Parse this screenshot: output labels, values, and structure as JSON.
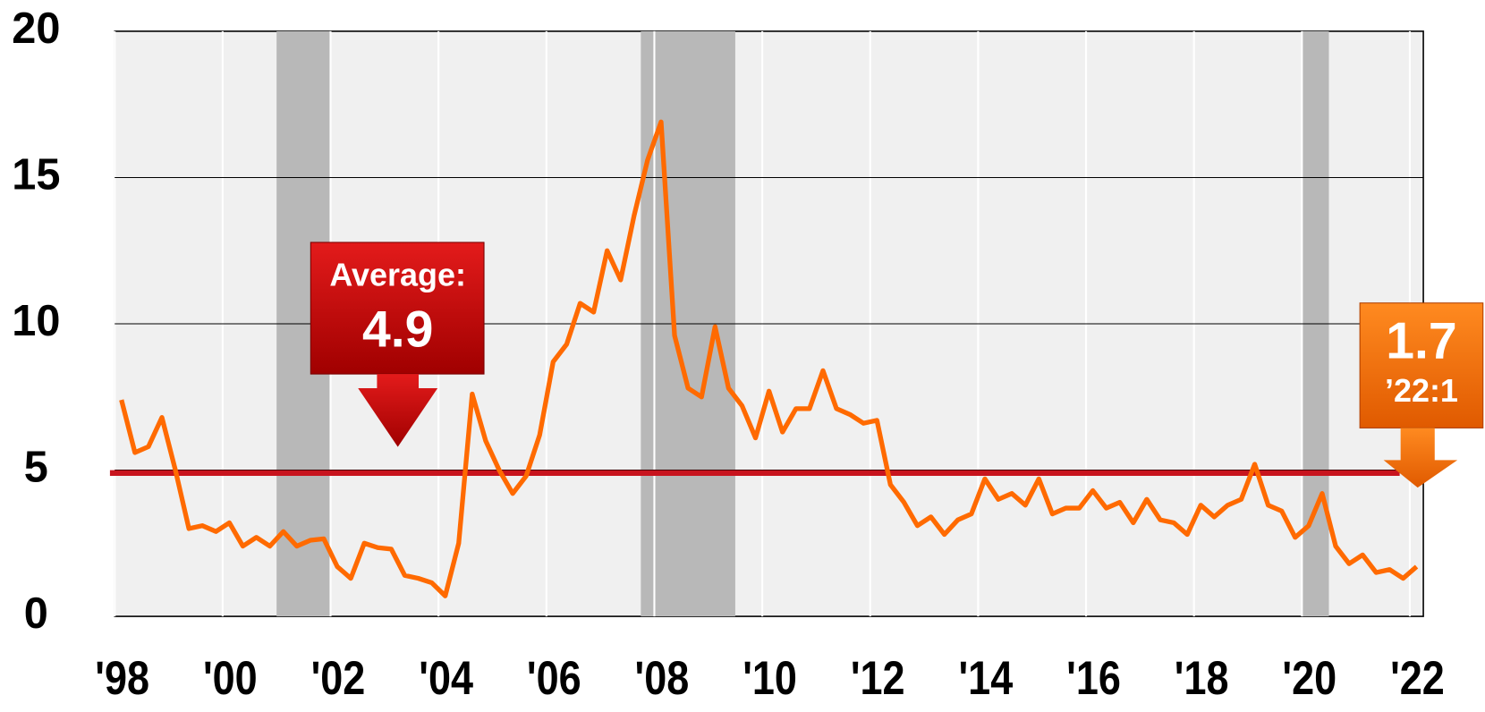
{
  "chart_data": {
    "type": "line",
    "x": [
      1998.125,
      1998.375,
      1998.625,
      1998.875,
      1999.125,
      1999.375,
      1999.625,
      1999.875,
      2000.125,
      2000.375,
      2000.625,
      2000.875,
      2001.125,
      2001.375,
      2001.625,
      2001.875,
      2002.125,
      2002.375,
      2002.625,
      2002.875,
      2003.125,
      2003.375,
      2003.625,
      2003.875,
      2004.125,
      2004.375,
      2004.625,
      2004.875,
      2005.125,
      2005.375,
      2005.625,
      2005.875,
      2006.125,
      2006.375,
      2006.625,
      2006.875,
      2007.125,
      2007.375,
      2007.625,
      2007.875,
      2008.125,
      2008.375,
      2008.625,
      2008.875,
      2009.125,
      2009.375,
      2009.625,
      2009.875,
      2010.125,
      2010.375,
      2010.625,
      2010.875,
      2011.125,
      2011.375,
      2011.625,
      2011.875,
      2012.125,
      2012.375,
      2012.625,
      2012.875,
      2013.125,
      2013.375,
      2013.625,
      2013.875,
      2014.125,
      2014.375,
      2014.625,
      2014.875,
      2015.125,
      2015.375,
      2015.625,
      2015.875,
      2016.125,
      2016.375,
      2016.625,
      2016.875,
      2017.125,
      2017.375,
      2017.625,
      2017.875,
      2018.125,
      2018.375,
      2018.625,
      2018.875,
      2019.125,
      2019.375,
      2019.625,
      2019.875,
      2020.125,
      2020.375,
      2020.625,
      2020.875,
      2021.125,
      2021.375,
      2021.625,
      2021.875,
      2022.125
    ],
    "values": [
      7.4,
      5.6,
      5.8,
      6.8,
      5.0,
      3.0,
      3.1,
      2.9,
      3.2,
      2.4,
      2.7,
      2.4,
      2.9,
      2.4,
      2.6,
      2.65,
      1.7,
      1.3,
      2.5,
      2.35,
      2.3,
      1.4,
      1.3,
      1.15,
      0.7,
      2.5,
      7.6,
      6.0,
      5.0,
      4.2,
      4.8,
      6.2,
      8.7,
      9.3,
      10.7,
      10.4,
      12.5,
      11.5,
      13.7,
      15.6,
      16.9,
      9.6,
      7.8,
      7.5,
      9.9,
      7.8,
      7.2,
      6.1,
      7.7,
      6.3,
      7.1,
      7.1,
      8.4,
      7.1,
      6.9,
      6.6,
      6.7,
      4.5,
      3.9,
      3.1,
      3.4,
      2.8,
      3.3,
      3.5,
      4.7,
      4.0,
      4.2,
      3.8,
      4.7,
      3.5,
      3.7,
      3.7,
      4.3,
      3.7,
      3.9,
      3.2,
      4.0,
      3.3,
      3.2,
      2.8,
      3.8,
      3.4,
      3.8,
      4.0,
      5.2,
      3.8,
      3.6,
      2.7,
      3.1,
      4.2,
      2.4,
      1.8,
      2.1,
      1.5,
      1.6,
      1.3,
      1.7
    ],
    "color": "#ff6a00",
    "xlim": [
      1998,
      2022.25
    ],
    "xticks": [
      {
        "value": 1998,
        "label": "'98"
      },
      {
        "value": 2000,
        "label": "'00"
      },
      {
        "value": 2002,
        "label": "'02"
      },
      {
        "value": 2004,
        "label": "'04"
      },
      {
        "value": 2006,
        "label": "'06"
      },
      {
        "value": 2008,
        "label": "'08"
      },
      {
        "value": 2010,
        "label": "'10"
      },
      {
        "value": 2012,
        "label": "'12"
      },
      {
        "value": 2014,
        "label": "'14"
      },
      {
        "value": 2016,
        "label": "'16"
      },
      {
        "value": 2018,
        "label": "'18"
      },
      {
        "value": 2020,
        "label": "'20"
      },
      {
        "value": 2022,
        "label": "'22"
      }
    ],
    "ylim": [
      0,
      20
    ],
    "yticks": [
      0,
      5,
      10,
      15,
      20
    ],
    "grid": true,
    "recessions": [
      [
        2001,
        2002
      ],
      [
        2007.75,
        2009.5
      ],
      [
        2020,
        2020.5
      ]
    ],
    "average": 4.9,
    "average_label": "Average:",
    "latest_label": "’22:1"
  }
}
